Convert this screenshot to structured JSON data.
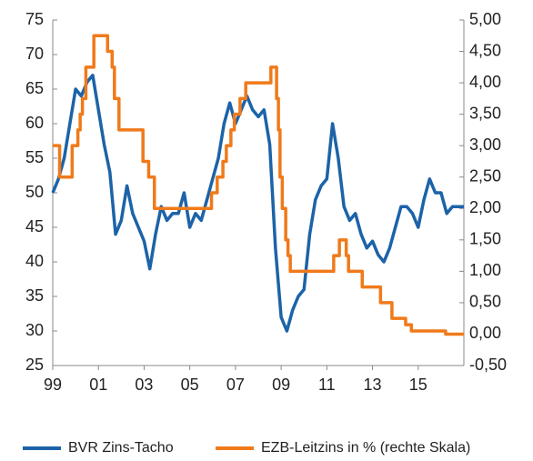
{
  "chart_data": {
    "type": "line",
    "xlim": [
      1999,
      2017
    ],
    "xticks": [
      {
        "value": 1999,
        "label": "99"
      },
      {
        "value": 2001,
        "label": "01"
      },
      {
        "value": 2003,
        "label": "03"
      },
      {
        "value": 2005,
        "label": "05"
      },
      {
        "value": 2007,
        "label": "07"
      },
      {
        "value": 2009,
        "label": "09"
      },
      {
        "value": 2011,
        "label": "11"
      },
      {
        "value": 2013,
        "label": "13"
      },
      {
        "value": 2015,
        "label": "15"
      }
    ],
    "ylim": [
      25,
      75
    ],
    "yticks": [
      25,
      30,
      35,
      40,
      45,
      50,
      55,
      60,
      65,
      70,
      75
    ],
    "y2lim": [
      -0.5,
      5
    ],
    "y2ticks": [
      {
        "value": -0.5,
        "label": "-0,50"
      },
      {
        "value": 0,
        "label": "0,00"
      },
      {
        "value": 0.5,
        "label": "0,50"
      },
      {
        "value": 1,
        "label": "1,00"
      },
      {
        "value": 1.5,
        "label": "1,50"
      },
      {
        "value": 2,
        "label": "2,00"
      },
      {
        "value": 2.5,
        "label": "2,50"
      },
      {
        "value": 3,
        "label": "3,00"
      },
      {
        "value": 3.5,
        "label": "3,50"
      },
      {
        "value": 4,
        "label": "4,00"
      },
      {
        "value": 4.5,
        "label": "4,50"
      },
      {
        "value": 5,
        "label": "5,00"
      }
    ],
    "series": [
      {
        "name": "BVR Zins-Tacho",
        "color": "#1c63a8",
        "axis": "y",
        "x": [
          1999.0,
          1999.25,
          1999.5,
          1999.75,
          2000.0,
          2000.25,
          2000.5,
          2000.75,
          2001.0,
          2001.25,
          2001.5,
          2001.75,
          2002.0,
          2002.25,
          2002.5,
          2002.75,
          2003.0,
          2003.25,
          2003.5,
          2003.75,
          2004.0,
          2004.25,
          2004.5,
          2004.75,
          2005.0,
          2005.25,
          2005.5,
          2005.75,
          2006.0,
          2006.25,
          2006.5,
          2006.75,
          2007.0,
          2007.25,
          2007.5,
          2007.75,
          2008.0,
          2008.25,
          2008.5,
          2008.75,
          2009.0,
          2009.25,
          2009.5,
          2009.75,
          2010.0,
          2010.25,
          2010.5,
          2010.75,
          2011.0,
          2011.25,
          2011.5,
          2011.75,
          2012.0,
          2012.25,
          2012.5,
          2012.75,
          2013.0,
          2013.25,
          2013.5,
          2013.75,
          2014.0,
          2014.25,
          2014.5,
          2014.75,
          2015.0,
          2015.25,
          2015.5,
          2015.75,
          2016.0,
          2016.25,
          2016.5,
          2016.75,
          2017.0
        ],
        "values": [
          50,
          52,
          55,
          60,
          65,
          64,
          66,
          67,
          62,
          57,
          53,
          44,
          46,
          51,
          47,
          45,
          43,
          39,
          44,
          48,
          46,
          47,
          47,
          50,
          45,
          47,
          46,
          49,
          52,
          55,
          60,
          63,
          60,
          62,
          64,
          62,
          61,
          62,
          57,
          42,
          32,
          30,
          33,
          35,
          36,
          44,
          49,
          51,
          52,
          60,
          55,
          48,
          46,
          47,
          44,
          42,
          43,
          41,
          40,
          42,
          45,
          48,
          48,
          47,
          45,
          49,
          52,
          50,
          50,
          47,
          48,
          48,
          48
        ]
      },
      {
        "name": "EZB-Leitzins in % (rechte Skala)",
        "color": "#f07a1a",
        "axis": "y2",
        "drawstyle": "steps-post",
        "x": [
          1999.0,
          1999.3,
          1999.85,
          2000.1,
          2000.2,
          2000.3,
          2000.45,
          2000.8,
          2001.4,
          2001.6,
          2001.7,
          2001.9,
          2002.95,
          2003.2,
          2003.45,
          2005.95,
          2006.2,
          2006.45,
          2006.6,
          2006.8,
          2006.95,
          2007.2,
          2007.45,
          2008.55,
          2008.8,
          2008.88,
          2008.95,
          2009.05,
          2009.2,
          2009.3,
          2009.4,
          2011.3,
          2011.55,
          2011.85,
          2011.95,
          2012.55,
          2013.35,
          2013.85,
          2014.45,
          2014.7,
          2016.2,
          2017.0
        ],
        "values": [
          3.0,
          2.5,
          3.0,
          3.25,
          3.5,
          3.75,
          4.25,
          4.75,
          4.5,
          4.25,
          3.75,
          3.25,
          2.75,
          2.5,
          2.0,
          2.25,
          2.5,
          2.75,
          3.0,
          3.25,
          3.5,
          3.75,
          4.0,
          4.25,
          3.75,
          3.25,
          2.5,
          2.0,
          1.5,
          1.25,
          1.0,
          1.25,
          1.5,
          1.25,
          1.0,
          0.75,
          0.5,
          0.25,
          0.15,
          0.05,
          0.0,
          0.0
        ]
      }
    ],
    "legend": "bottom"
  }
}
